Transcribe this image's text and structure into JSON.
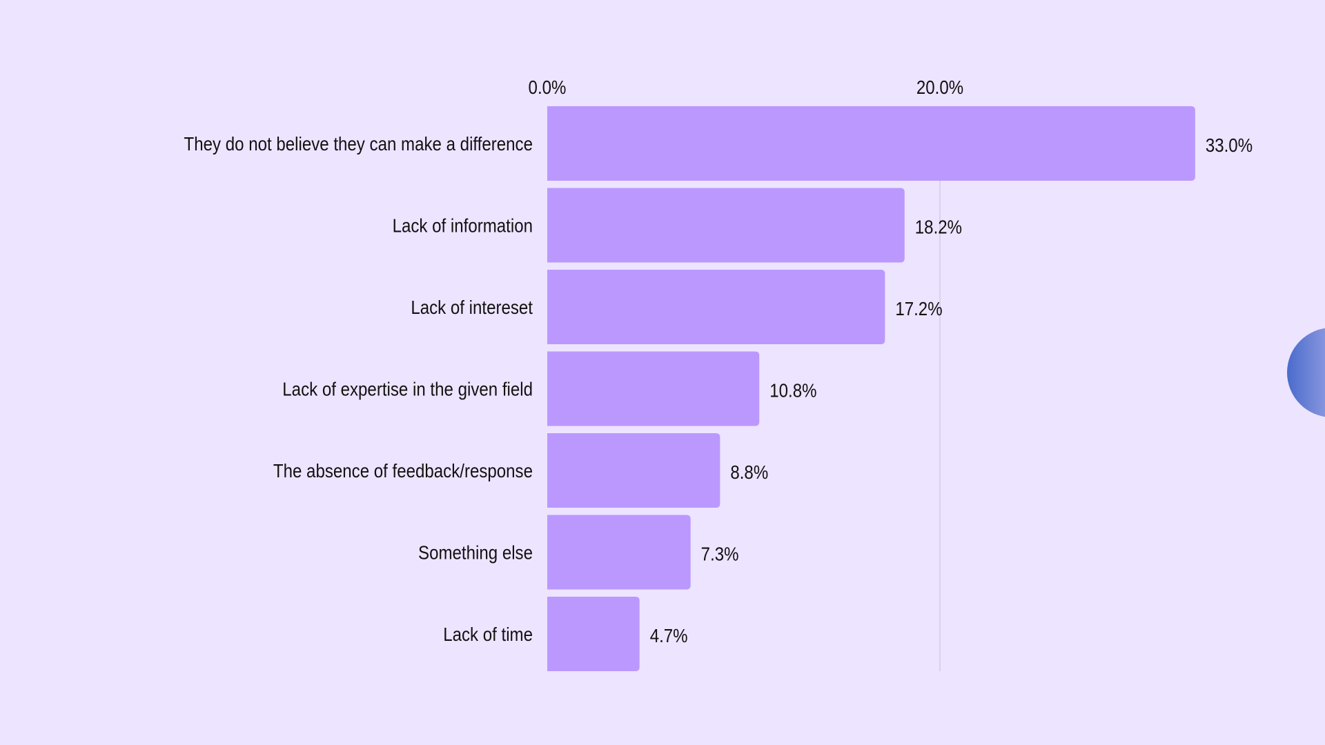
{
  "chart_data": {
    "type": "bar",
    "orientation": "horizontal",
    "title": "",
    "xlabel": "",
    "ylabel": "",
    "xlim": [
      0,
      33
    ],
    "x_ticks": [
      {
        "value": 0,
        "label": "0.0%"
      },
      {
        "value": 20,
        "label": "20.0%"
      }
    ],
    "grid": true,
    "categories": [
      "They do not believe they can make a difference",
      "Lack of information",
      "Lack of intereset",
      "Lack of expertise in the given field",
      "The absence of feedback/response",
      "Something else",
      "Lack of time"
    ],
    "values": [
      33.0,
      18.2,
      17.2,
      10.8,
      8.8,
      7.3,
      4.7
    ],
    "value_labels": [
      "33.0%",
      "18.2%",
      "17.2%",
      "10.8%",
      "8.8%",
      "7.3%",
      "4.7%"
    ],
    "colors": {
      "bar": "#bb98fe",
      "background": "#ede4ff",
      "grid": "#d3c9e3",
      "text": "#111111"
    }
  }
}
